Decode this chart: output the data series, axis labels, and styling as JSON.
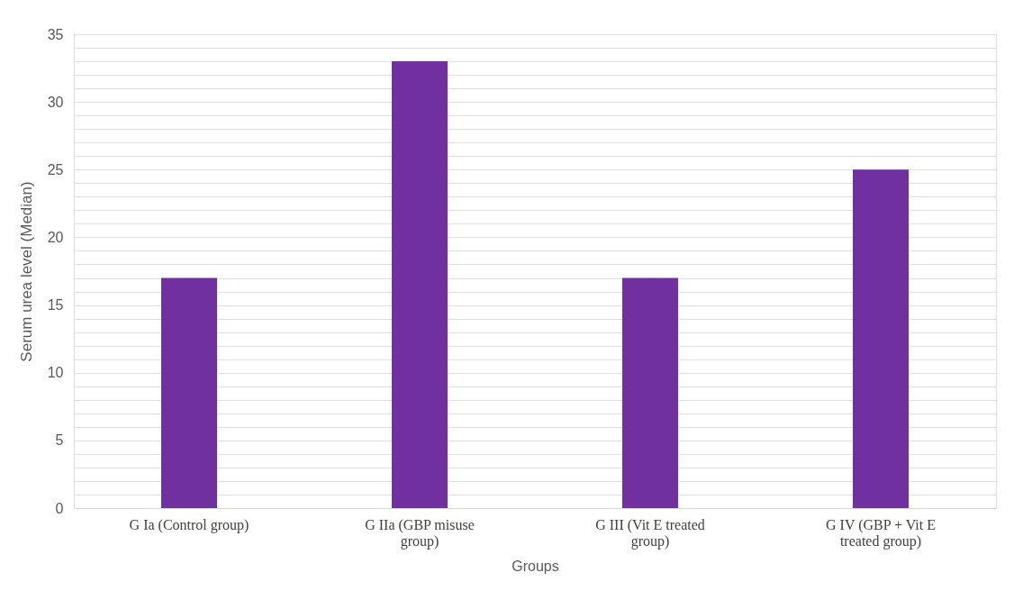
{
  "chart_data": {
    "type": "bar",
    "xlabel": "Groups",
    "ylabel": "Serum urea level (Median)",
    "categories": [
      "G Ia (Control group)",
      "G IIa (GBP misuse group)",
      "G III (Vit E treated group)",
      "G IV (GBP + Vit E treated group)"
    ],
    "values": [
      17,
      33,
      17,
      25
    ],
    "color": "#7030a0",
    "ylim": [
      0,
      35
    ],
    "yticks": [
      0,
      {
        "value": 1,
        "label": null
      },
      {
        "value": 2,
        "label": null
      },
      {
        "value": 3,
        "label": null
      },
      {
        "value": 4,
        "label": null
      },
      5,
      {
        "value": 6,
        "label": null
      },
      {
        "value": 7,
        "label": null
      },
      {
        "value": 8,
        "label": null
      },
      {
        "value": 9,
        "label": null
      },
      10,
      {
        "value": 11,
        "label": null
      },
      {
        "value": 12,
        "label": null
      },
      {
        "value": 13,
        "label": null
      },
      {
        "value": 14,
        "label": null
      },
      15,
      {
        "value": 16,
        "label": null
      },
      {
        "value": 17,
        "label": null
      },
      {
        "value": 18,
        "label": null
      },
      {
        "value": 19,
        "label": null
      },
      20,
      {
        "value": 21,
        "label": null
      },
      {
        "value": 22,
        "label": null
      },
      {
        "value": 23,
        "label": null
      },
      {
        "value": 24,
        "label": null
      },
      25,
      {
        "value": 26,
        "label": null
      },
      {
        "value": 27,
        "label": null
      },
      {
        "value": 28,
        "label": null
      },
      {
        "value": 29,
        "label": null
      },
      30,
      {
        "value": 31,
        "label": null
      },
      {
        "value": 32,
        "label": null
      },
      {
        "value": 33,
        "label": null
      },
      {
        "value": 34,
        "label": null
      },
      35
    ],
    "grid": "y"
  }
}
